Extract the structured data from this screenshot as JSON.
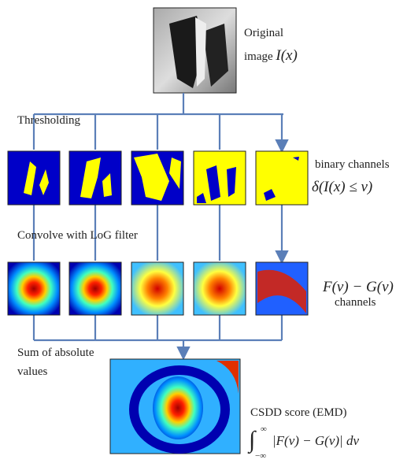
{
  "original_image": {
    "line1": "Original",
    "line2": "image",
    "math": "I(x)"
  },
  "steps": {
    "thresholding": "Thresholding",
    "convolve": "Convolve with LoG filter",
    "sum_line1": "Sum of absolute",
    "sum_line2": "values"
  },
  "binary_channels": {
    "label": "binary channels",
    "math": "δ(I(x) ≤ v)"
  },
  "filtered_channels": {
    "math": "F(v) − G(v)",
    "label": "channels"
  },
  "score": {
    "label": "CSDD score (EMD)",
    "integral": "∫",
    "upper": "∞",
    "lower": "−∞",
    "integrand": "|F(v) − G(v)| dv"
  }
}
